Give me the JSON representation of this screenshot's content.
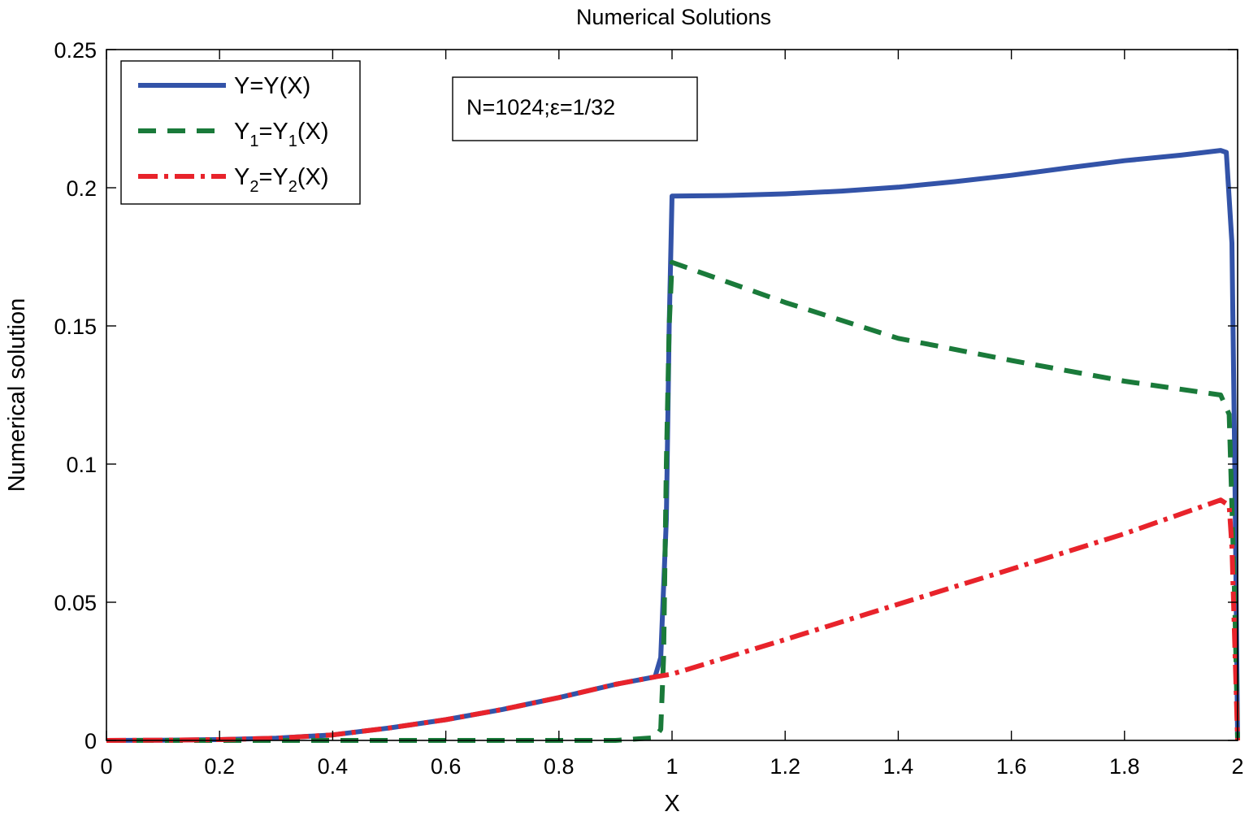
{
  "chart_data": {
    "type": "line",
    "title": "Numerical Solutions",
    "xlabel": "X",
    "ylabel": "Numerical solution",
    "xlim": [
      0,
      2
    ],
    "ylim": [
      0,
      0.25
    ],
    "xticks": [
      "0",
      "0.2",
      "0.4",
      "0.6",
      "0.8",
      "1",
      "1.2",
      "1.4",
      "1.6",
      "1.8",
      "2"
    ],
    "yticks": [
      "0",
      "0.05",
      "0.1",
      "0.15",
      "0.2",
      "0.25"
    ],
    "grid": false,
    "legend_position": "top-left",
    "annotation": "N=1024;ε=1/32",
    "series": [
      {
        "name": "Y=Y(X)",
        "legend": {
          "main": "Y=Y(X)",
          "parts": [
            {
              "t": "Y=Y(X)"
            }
          ]
        },
        "color": "#3353a8",
        "style": "solid",
        "x": [
          0,
          0.1,
          0.2,
          0.3,
          0.4,
          0.5,
          0.6,
          0.7,
          0.8,
          0.9,
          0.97,
          0.98,
          0.99,
          0.995,
          1.0,
          1.1,
          1.2,
          1.3,
          1.4,
          1.5,
          1.6,
          1.7,
          1.8,
          1.9,
          1.97,
          1.98,
          1.99,
          1.995,
          2.0
        ],
        "y": [
          0,
          0.0001,
          0.0003,
          0.0008,
          0.002,
          0.0045,
          0.0075,
          0.0112,
          0.0155,
          0.0203,
          0.023,
          0.03,
          0.08,
          0.15,
          0.197,
          0.1972,
          0.1978,
          0.1988,
          0.2002,
          0.2022,
          0.2045,
          0.2072,
          0.2098,
          0.2118,
          0.2135,
          0.2128,
          0.18,
          0.1,
          0
        ]
      },
      {
        "name": "Y1=Y1(X)",
        "legend": {
          "main": "Y1=Y1(X)",
          "parts": [
            {
              "t": "Y"
            },
            {
              "t": "1",
              "sub": true
            },
            {
              "t": "=Y"
            },
            {
              "t": "1",
              "sub": true
            },
            {
              "t": "(X)"
            }
          ]
        },
        "color": "#1a7a3a",
        "style": "dashed",
        "x": [
          0,
          0.2,
          0.4,
          0.6,
          0.8,
          0.9,
          0.97,
          0.98,
          0.985,
          0.99,
          0.995,
          1.0,
          1.2,
          1.4,
          1.6,
          1.8,
          1.97,
          1.985,
          1.995,
          2.0
        ],
        "y": [
          0,
          0,
          0,
          0,
          0,
          0,
          0.001,
          0.004,
          0.03,
          0.1,
          0.15,
          0.173,
          0.1585,
          0.1455,
          0.1375,
          0.13,
          0.125,
          0.118,
          0.05,
          0
        ]
      },
      {
        "name": "Y2=Y2(X)",
        "legend": {
          "main": "Y2=Y2(X)",
          "parts": [
            {
              "t": "Y"
            },
            {
              "t": "2",
              "sub": true
            },
            {
              "t": "=Y"
            },
            {
              "t": "2",
              "sub": true
            },
            {
              "t": "(X)"
            }
          ]
        },
        "color": "#e8232b",
        "style": "dashdot",
        "x": [
          0,
          0.1,
          0.2,
          0.3,
          0.4,
          0.5,
          0.6,
          0.7,
          0.8,
          0.9,
          0.97,
          1.0,
          1.2,
          1.4,
          1.6,
          1.8,
          1.97,
          1.985,
          1.99,
          1.995,
          2.0
        ],
        "y": [
          0,
          0.0001,
          0.0003,
          0.0008,
          0.002,
          0.0045,
          0.0075,
          0.0112,
          0.0155,
          0.0203,
          0.023,
          0.024,
          0.0365,
          0.0493,
          0.062,
          0.0748,
          0.087,
          0.085,
          0.07,
          0.035,
          0
        ]
      }
    ]
  }
}
